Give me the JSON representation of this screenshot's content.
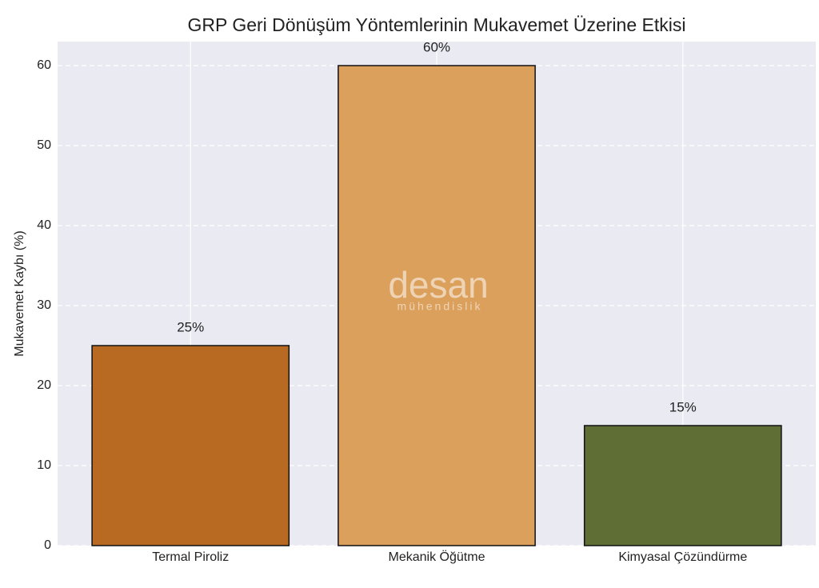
{
  "chart_data": {
    "type": "bar",
    "title": "GRP Geri Dönüşüm Yöntemlerinin Mukavemet Üzerine Etkisi",
    "ylabel": "Mukavemet Kaybı (%)",
    "categories": [
      "Termal Piroliz",
      "Mekanik Öğütme",
      "Kimyasal Çözündürme"
    ],
    "values": [
      25,
      60,
      15
    ],
    "value_labels": [
      "25%",
      "60%",
      "15%"
    ],
    "colors": [
      "#b96a22",
      "#dba05c",
      "#5e6e35"
    ],
    "ylim": [
      0,
      63
    ],
    "yticks": [
      0,
      10,
      20,
      30,
      40,
      50,
      60
    ],
    "grid": true,
    "watermark": {
      "name": "desan",
      "tagline": "mühendislik"
    }
  }
}
